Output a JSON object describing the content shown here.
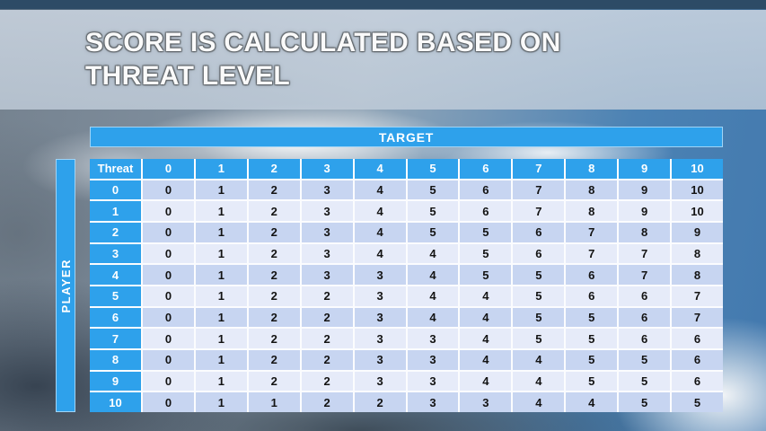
{
  "slide": {
    "title": "SCORE IS CALCULATED BASED ON THREAT LEVEL"
  },
  "table": {
    "target_label": "TARGET",
    "player_label": "PLAYER"
  },
  "colors": {
    "accent_blue": "#2EA1EB",
    "row_shade_dark": "#C7D5F1",
    "row_shade_light": "#E6EBF9",
    "grid_line": "#FBFCFE",
    "cell_text": "#131313",
    "header_text": "#FFFFFF",
    "title_text": "#FAFAFA"
  },
  "chart_data": {
    "type": "table",
    "title": "SCORE IS CALCULATED BASED ON THREAT LEVEL",
    "x_axis_label": "TARGET",
    "y_axis_label": "PLAYER",
    "corner_label": "Threat",
    "columns": [
      0,
      1,
      2,
      3,
      4,
      5,
      6,
      7,
      8,
      9,
      10
    ],
    "rows": [
      0,
      1,
      2,
      3,
      4,
      5,
      6,
      7,
      8,
      9,
      10
    ],
    "values": [
      [
        0,
        1,
        2,
        3,
        4,
        5,
        6,
        7,
        8,
        9,
        10
      ],
      [
        0,
        1,
        2,
        3,
        4,
        5,
        6,
        7,
        8,
        9,
        10
      ],
      [
        0,
        1,
        2,
        3,
        4,
        5,
        5,
        6,
        7,
        8,
        9
      ],
      [
        0,
        1,
        2,
        3,
        4,
        4,
        5,
        6,
        7,
        7,
        8
      ],
      [
        0,
        1,
        2,
        3,
        3,
        4,
        5,
        5,
        6,
        7,
        8
      ],
      [
        0,
        1,
        2,
        2,
        3,
        4,
        4,
        5,
        6,
        6,
        7
      ],
      [
        0,
        1,
        2,
        2,
        3,
        4,
        4,
        5,
        5,
        6,
        7
      ],
      [
        0,
        1,
        2,
        2,
        3,
        3,
        4,
        5,
        5,
        6,
        6
      ],
      [
        0,
        1,
        2,
        2,
        3,
        3,
        4,
        4,
        5,
        5,
        6
      ],
      [
        0,
        1,
        2,
        2,
        3,
        3,
        4,
        4,
        5,
        5,
        6
      ],
      [
        0,
        1,
        1,
        2,
        2,
        3,
        3,
        4,
        4,
        5,
        5
      ]
    ]
  }
}
